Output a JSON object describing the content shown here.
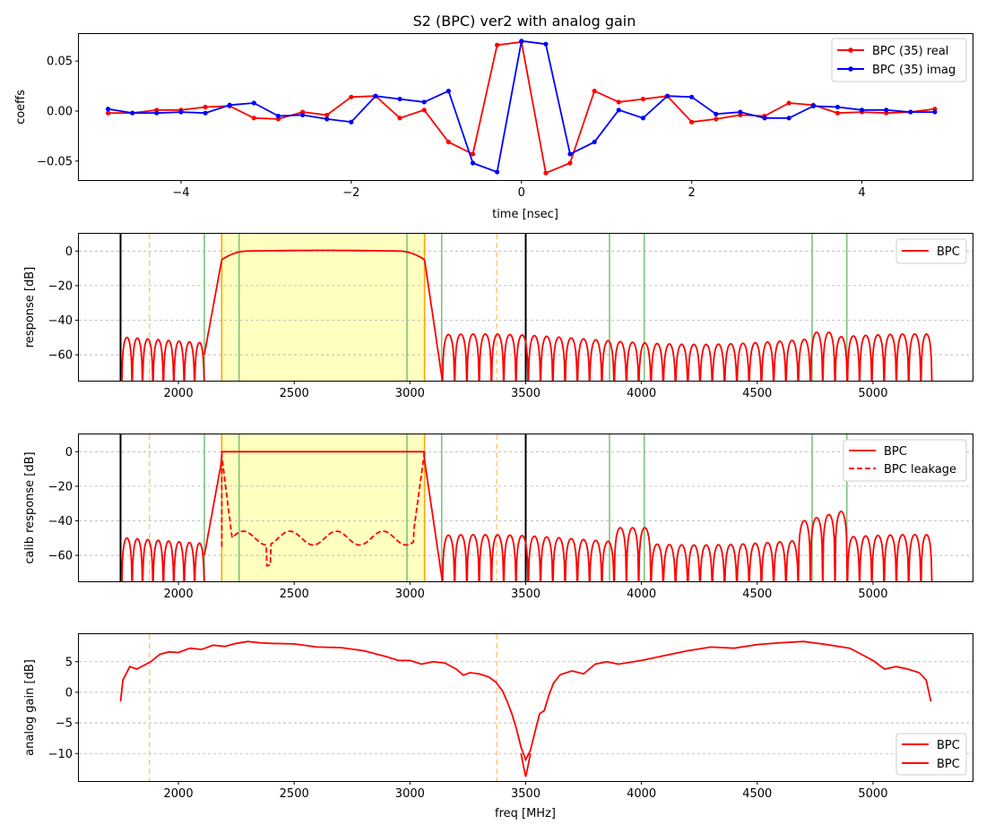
{
  "title": "S2 (BPC)   ver2   with analog gain",
  "colors": {
    "real": "#ff0000",
    "imag": "#0000ff",
    "band": "#ffffc0",
    "orange": "#ffa500",
    "orange_dash": "#ffcc80",
    "green": "#7cc47c",
    "grid": "#b0b0b0"
  },
  "chart_data": [
    {
      "type": "line",
      "xlabel": "time [nsec]",
      "ylabel": "coeffs",
      "xlim": [
        -5.2,
        5.3
      ],
      "ylim": [
        -0.069,
        0.077
      ],
      "xticks": [
        -4,
        -2,
        0,
        2,
        4
      ],
      "yticks": [
        0.05,
        0.0,
        -0.05
      ],
      "ytick_labels": [
        "0.05",
        "0.00",
        "−0.05"
      ],
      "xtick_labels": [
        "−4",
        "−2",
        "0",
        "2",
        "4"
      ],
      "legend": "top-right",
      "x": [
        -4.857,
        -4.571,
        -4.286,
        -4.0,
        -3.714,
        -3.429,
        -3.143,
        -2.857,
        -2.571,
        -2.286,
        -2.0,
        -1.714,
        -1.429,
        -1.143,
        -0.857,
        -0.571,
        -0.286,
        0.0,
        0.286,
        0.571,
        0.857,
        1.143,
        1.429,
        1.714,
        2.0,
        2.286,
        2.571,
        2.857,
        3.143,
        3.429,
        3.714,
        4.0,
        4.286,
        4.571,
        4.857
      ],
      "series": [
        {
          "name": "BPC (35) real",
          "values": [
            -0.002,
            -0.002,
            0.001,
            0.001,
            0.004,
            0.005,
            -0.007,
            -0.008,
            -0.001,
            -0.004,
            0.014,
            0.015,
            -0.007,
            0.001,
            -0.031,
            -0.043,
            0.066,
            0.069,
            -0.062,
            -0.052,
            0.02,
            0.009,
            0.012,
            0.015,
            -0.011,
            -0.008,
            -0.004,
            -0.005,
            0.008,
            0.006,
            -0.002,
            -0.001,
            -0.002,
            -0.001,
            0.002
          ]
        },
        {
          "name": "BPC (35) imag",
          "values": [
            0.002,
            -0.002,
            -0.002,
            -0.001,
            -0.002,
            0.006,
            0.008,
            -0.005,
            -0.004,
            -0.008,
            -0.011,
            0.015,
            0.012,
            0.009,
            0.02,
            -0.052,
            -0.061,
            0.07,
            0.067,
            -0.043,
            -0.031,
            0.001,
            -0.007,
            0.015,
            0.014,
            -0.003,
            -0.001,
            -0.007,
            -0.007,
            0.005,
            0.004,
            0.001,
            0.001,
            -0.001,
            -0.001
          ]
        }
      ]
    },
    {
      "type": "line",
      "ylabel": "response [dB]",
      "xlim": [
        1570,
        5430
      ],
      "ylim": [
        -75,
        10
      ],
      "xticks": [
        2000,
        2500,
        3000,
        3500,
        4000,
        4500,
        5000
      ],
      "yticks": [
        0,
        -20,
        -40,
        -60
      ],
      "ytick_labels": [
        "0",
        "−20",
        "−40",
        "−60"
      ],
      "grid": "y dashed",
      "legend": "top-right",
      "passband": [
        2187,
        3063
      ],
      "black_lines": [
        1750,
        3500
      ],
      "orange_dashed": [
        1875,
        3375
      ],
      "green_lines": [
        2112,
        2262,
        2987,
        3137,
        3862,
        4012,
        4737,
        4887
      ],
      "series": [
        {
          "name": "BPC",
          "passband_level_db": 0,
          "sidelobe_level_db": [
            -58,
            -46
          ]
        }
      ]
    },
    {
      "type": "line",
      "ylabel": "calib response [dB]",
      "xlim": [
        1570,
        5430
      ],
      "ylim": [
        -75,
        10
      ],
      "xticks": [
        2000,
        2500,
        3000,
        3500,
        4000,
        4500,
        5000
      ],
      "yticks": [
        0,
        -20,
        -40,
        -60
      ],
      "ytick_labels": [
        "0",
        "−20",
        "−40",
        "−60"
      ],
      "grid": "y dashed",
      "legend": "top-right",
      "passband": [
        2187,
        3063
      ],
      "black_lines": [
        1750,
        3500
      ],
      "orange_dashed": [
        1875,
        3375
      ],
      "green_lines": [
        2112,
        2262,
        2987,
        3137,
        3862,
        4012,
        4737,
        4887
      ],
      "series": [
        {
          "name": "BPC",
          "passband_level_db": 0
        },
        {
          "name": "BPC leakage",
          "level_db": [
            -55,
            -45
          ]
        }
      ]
    },
    {
      "type": "line",
      "xlabel": "freq [MHz]",
      "ylabel": "analog gain [dB]",
      "xlim": [
        1570,
        5430
      ],
      "ylim": [
        -14.5,
        9.5
      ],
      "xticks": [
        2000,
        2500,
        3000,
        3500,
        4000,
        4500,
        5000
      ],
      "yticks": [
        5,
        0,
        -5,
        -10
      ],
      "ytick_labels": [
        "5",
        "0",
        "−5",
        "−10"
      ],
      "grid": "y dashed",
      "legend": "bottom-right",
      "orange_dashed": [
        1875,
        3375
      ],
      "series": [
        {
          "name": "BPC",
          "x": [
            1750,
            1760,
            1790,
            1820,
            1850,
            1880,
            1920,
            1960,
            2000,
            2050,
            2100,
            2150,
            2200,
            2250,
            2300,
            2350,
            2400,
            2500,
            2600,
            2700,
            2800,
            2900,
            2950,
            3000,
            3050,
            3100,
            3150,
            3200,
            3230,
            3260,
            3300,
            3340,
            3370,
            3400,
            3420,
            3440,
            3460,
            3480,
            3500,
            3520,
            3540,
            3560,
            3580,
            3600,
            3620,
            3650,
            3700,
            3750,
            3800,
            3850,
            3900,
            4000,
            4100,
            4200,
            4300,
            4400,
            4500,
            4600,
            4700,
            4800,
            4900,
            4950,
            5000,
            5050,
            5100,
            5150,
            5200,
            5230,
            5250
          ],
          "values": [
            -1.5,
            2.0,
            4.2,
            3.8,
            4.4,
            5.0,
            6.2,
            6.6,
            6.5,
            7.2,
            7.0,
            7.7,
            7.5,
            8.0,
            8.3,
            8.1,
            8.0,
            7.9,
            7.4,
            7.3,
            6.8,
            5.8,
            5.2,
            5.2,
            4.6,
            5.0,
            4.8,
            3.8,
            2.8,
            3.2,
            3.0,
            2.5,
            1.7,
            0.2,
            -1.5,
            -3.5,
            -6.0,
            -9.0,
            -11.0,
            -9.5,
            -6.5,
            -3.5,
            -3.0,
            -0.5,
            1.5,
            2.9,
            3.5,
            3.0,
            4.6,
            5.0,
            4.6,
            5.2,
            6.0,
            6.8,
            7.4,
            7.2,
            7.8,
            8.1,
            8.3,
            7.8,
            7.2,
            6.2,
            5.2,
            3.8,
            4.2,
            3.8,
            3.2,
            2.0,
            -1.5
          ]
        },
        {
          "name": "BPC",
          "x": [
            3480,
            3490,
            3500,
            3510,
            3520
          ],
          "values": [
            -10.0,
            -12.0,
            -13.8,
            -12.0,
            -10.0
          ]
        }
      ]
    }
  ]
}
